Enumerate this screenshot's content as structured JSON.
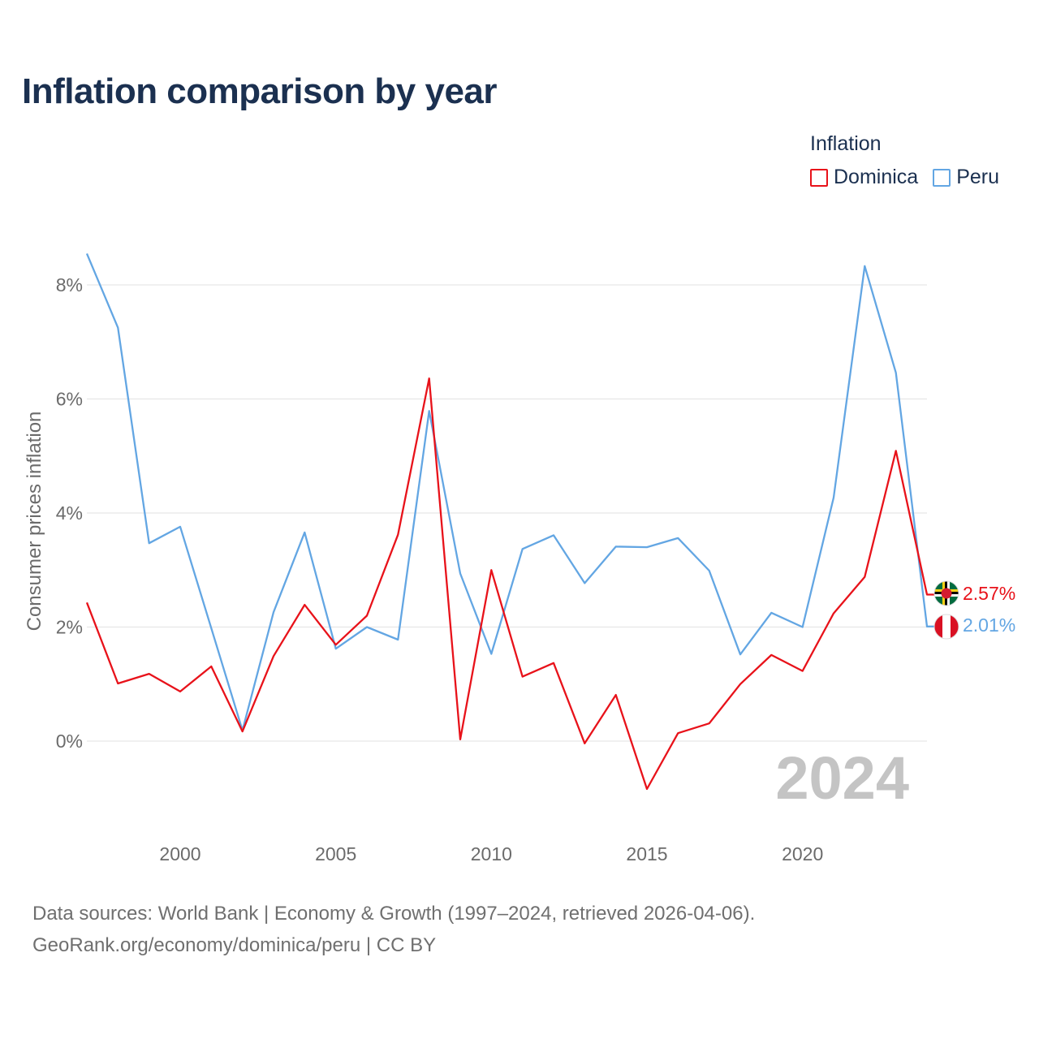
{
  "title": "Inflation comparison by year",
  "legend": {
    "title": "Inflation",
    "items": [
      {
        "label": "Dominica",
        "color": "#e8121a"
      },
      {
        "label": "Peru",
        "color": "#63a6e3"
      }
    ]
  },
  "footer": {
    "line1": "Data sources: World Bank | Economy & Growth (1997–2024, retrieved 2026-04-06).",
    "line2": "GeoRank.org/economy/dominica/peru | CC BY"
  },
  "chart_data": {
    "type": "line",
    "title": "Inflation comparison by year",
    "xlabel": "",
    "ylabel": "Consumer prices inflation",
    "xlim": [
      1997,
      2024
    ],
    "ylim": [
      -1.3,
      8.9
    ],
    "year_label": "2024",
    "x": [
      1997,
      1998,
      1999,
      2000,
      2001,
      2002,
      2003,
      2004,
      2005,
      2006,
      2007,
      2008,
      2009,
      2010,
      2011,
      2012,
      2013,
      2014,
      2015,
      2016,
      2017,
      2018,
      2019,
      2020,
      2021,
      2022,
      2023,
      2024
    ],
    "x_ticks": [
      2000,
      2005,
      2010,
      2015,
      2020
    ],
    "x_tick_labels": [
      "2000",
      "2005",
      "2010",
      "2015",
      "2020"
    ],
    "y_ticks": [
      0,
      2,
      4,
      6,
      8
    ],
    "y_tick_labels": [
      "0%",
      "2%",
      "4%",
      "6%",
      "8%"
    ],
    "series": [
      {
        "name": "Dominica",
        "color": "#e8121a",
        "end_label": "2.57%",
        "values": [
          2.43,
          1.01,
          1.18,
          0.87,
          1.31,
          0.17,
          1.49,
          2.39,
          1.69,
          2.2,
          3.62,
          6.36,
          0.03,
          3.0,
          1.13,
          1.37,
          -0.04,
          0.81,
          -0.84,
          0.14,
          0.31,
          1.0,
          1.51,
          1.23,
          2.24,
          2.88,
          5.09,
          2.57
        ]
      },
      {
        "name": "Peru",
        "color": "#63a6e3",
        "end_label": "2.01%",
        "values": [
          8.55,
          7.25,
          3.47,
          3.76,
          1.98,
          0.19,
          2.26,
          3.66,
          1.62,
          2.0,
          1.78,
          5.79,
          2.94,
          1.53,
          3.37,
          3.61,
          2.77,
          3.41,
          3.4,
          3.56,
          2.99,
          1.52,
          2.25,
          2.0,
          4.27,
          8.33,
          6.46,
          2.01
        ]
      }
    ]
  }
}
